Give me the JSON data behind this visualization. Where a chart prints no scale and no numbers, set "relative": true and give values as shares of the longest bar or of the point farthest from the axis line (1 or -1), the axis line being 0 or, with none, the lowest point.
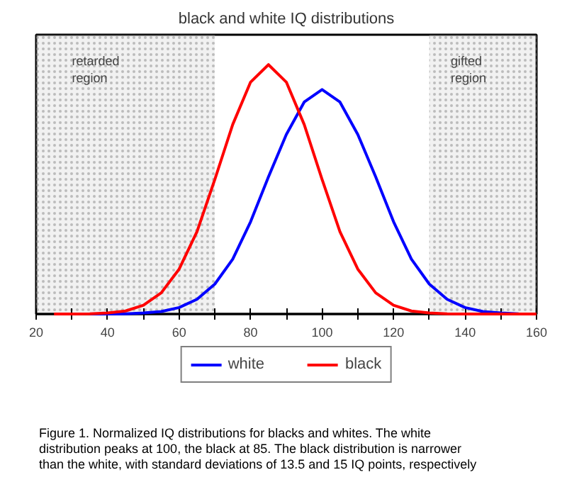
{
  "chart_data": {
    "type": "line",
    "title": "black and white IQ distributions",
    "relative": true,
    "legend": "bottom",
    "line_style": "solid",
    "xlim": [
      20,
      160
    ],
    "xticks": [
      20,
      {
        "value": 30,
        "label": null
      },
      40,
      {
        "value": 50,
        "label": null
      },
      60,
      {
        "value": 70,
        "label": null
      },
      80,
      {
        "value": 90,
        "label": null
      },
      100,
      {
        "value": 110,
        "label": null
      },
      120,
      {
        "value": 130,
        "label": null
      },
      140,
      {
        "value": 150,
        "label": null
      },
      160
    ],
    "series": [
      {
        "name": "white",
        "color": "#0000ff",
        "x": [
          35,
          40,
          45,
          50,
          55,
          60,
          65,
          70,
          75,
          80,
          85,
          90,
          95,
          100,
          105,
          110,
          115,
          120,
          125,
          130,
          135,
          140,
          145,
          150,
          155
        ],
        "values": [
          0,
          0,
          0.001,
          0.004,
          0.01,
          0.026,
          0.059,
          0.12,
          0.22,
          0.37,
          0.55,
          0.72,
          0.85,
          0.9,
          0.85,
          0.72,
          0.55,
          0.37,
          0.22,
          0.12,
          0.059,
          0.026,
          0.01,
          0.004,
          0.001
        ]
      },
      {
        "name": "black",
        "color": "#ff0000",
        "x": [
          25,
          30,
          35,
          40,
          45,
          50,
          55,
          60,
          65,
          70,
          75,
          80,
          85,
          90,
          95,
          100,
          105,
          110,
          115,
          120,
          125,
          130,
          135,
          140,
          145,
          150,
          155,
          160
        ],
        "values": [
          0,
          0,
          0.001,
          0.004,
          0.012,
          0.035,
          0.085,
          0.18,
          0.33,
          0.54,
          0.76,
          0.93,
          1,
          0.93,
          0.76,
          0.54,
          0.33,
          0.18,
          0.085,
          0.035,
          0.012,
          0.004,
          0.001,
          0,
          0,
          0,
          0,
          0
        ]
      }
    ],
    "bands": [
      {
        "axis": "x",
        "from": 20,
        "to": 70,
        "label": "retarded\nregion",
        "color": "#c8c8c8"
      },
      {
        "axis": "x",
        "from": 130,
        "to": 160,
        "label": "gifted\nregion",
        "color": "#c8c8c8"
      }
    ],
    "annotations": [
      "Figure 1.  Normalized IQ distributions for blacks and whites. The white distribution peaks at 100, the black at 85. The black distribution is narrower than the white, with standard deviations of 13.5 and 15 IQ points, respectively"
    ]
  }
}
